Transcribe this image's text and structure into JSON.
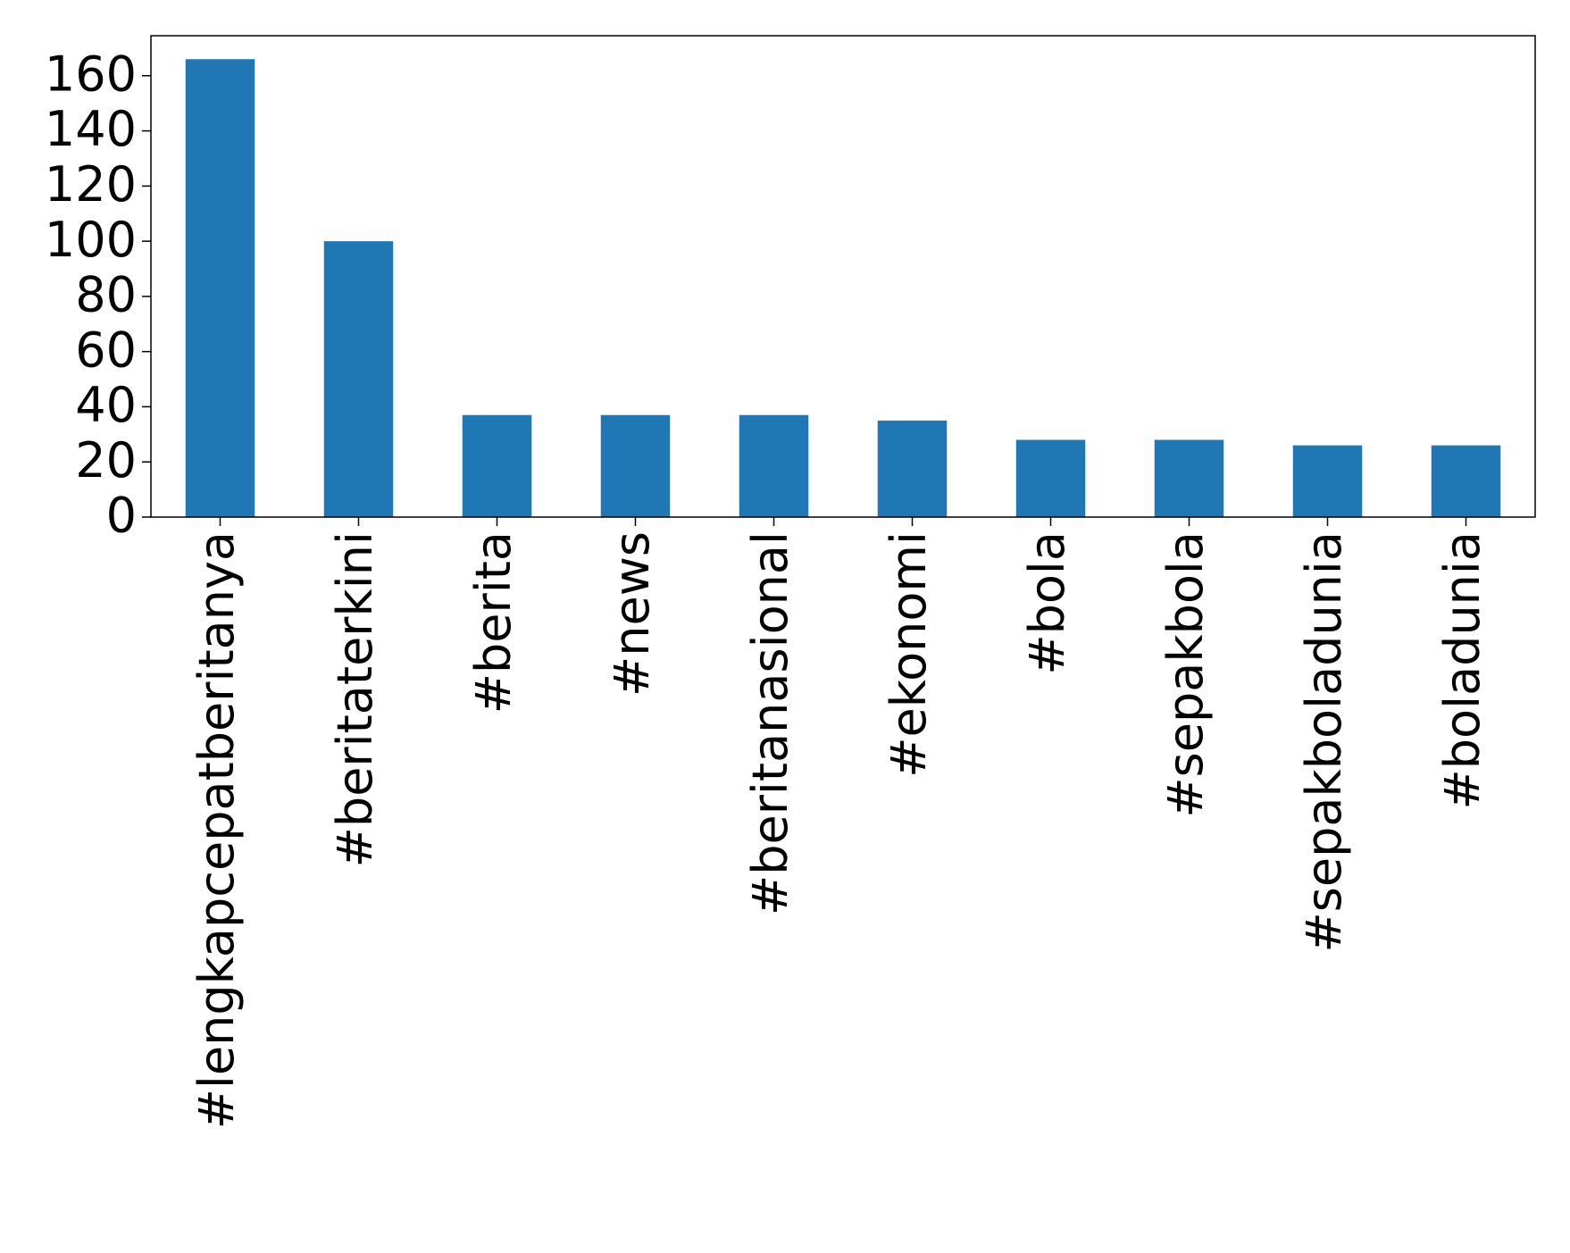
{
  "chart_data": {
    "type": "bar",
    "categories": [
      "#lengkapcepatberitanya",
      "#beritaterkini",
      "#berita",
      "#news",
      "#beritanasional",
      "#ekonomi",
      "#bola",
      "#sepakbola",
      "#sepakboladunia",
      "#boladunia"
    ],
    "values": [
      166,
      100,
      37,
      37,
      37,
      35,
      28,
      28,
      26,
      26
    ],
    "color": "#1f77b4",
    "ylim": [
      0,
      174.5
    ],
    "yticks": [
      0,
      20,
      40,
      60,
      80,
      100,
      120,
      140,
      160
    ],
    "grid": false
  }
}
